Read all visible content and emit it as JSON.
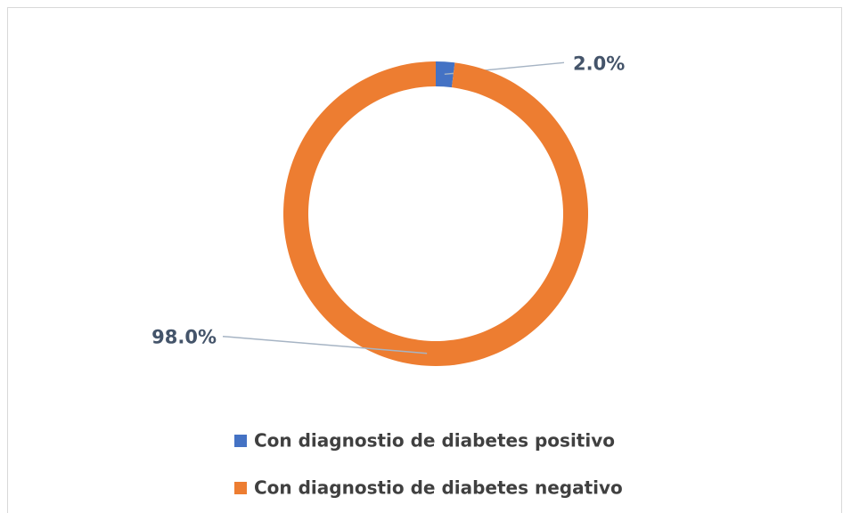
{
  "chart_data": {
    "type": "donut",
    "categories": [
      "Con diagnostio de diabetes positivo",
      "Con diagnostio de diabetes negativo"
    ],
    "values": [
      2.0,
      98.0
    ],
    "value_labels": [
      "2.0%",
      "98.0%"
    ],
    "colors": [
      "#4472c4",
      "#ed7d31"
    ],
    "legend": "bottom"
  }
}
